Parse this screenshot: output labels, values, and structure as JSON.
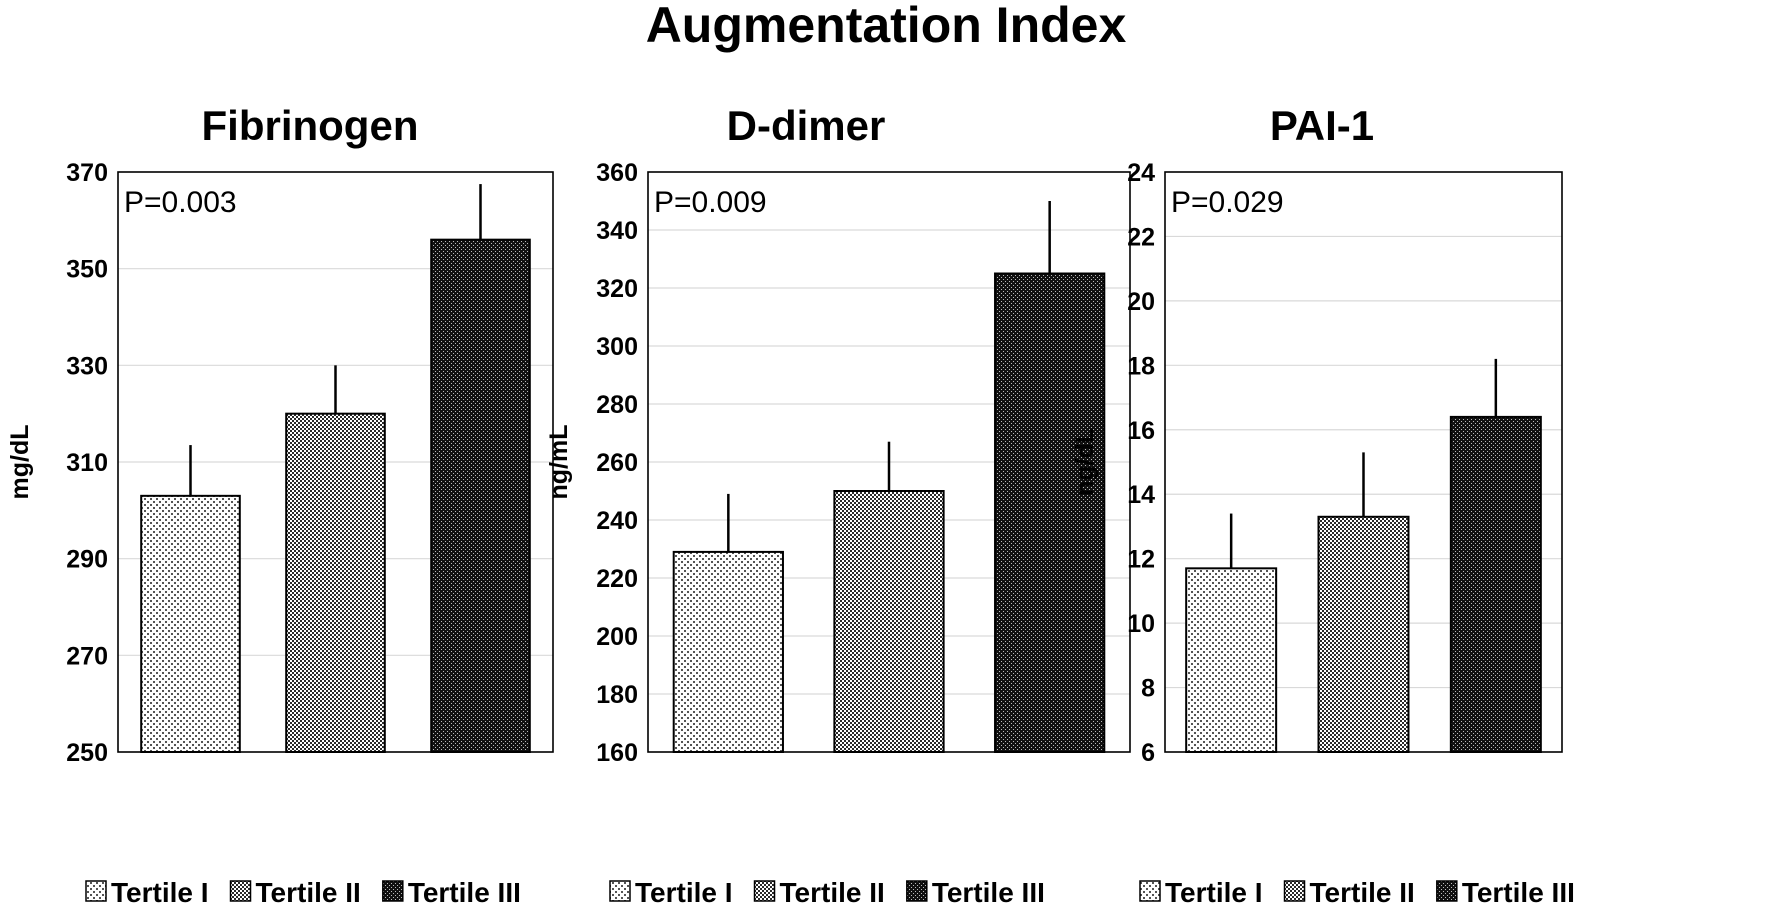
{
  "title": "Augmentation Index",
  "legend": [
    "Tertile I",
    "Tertile II",
    "Tertile III"
  ],
  "chart_data": [
    {
      "type": "bar",
      "title": "Fibrinogen",
      "ylabel": "mg/dL",
      "annotation": "P=0.003",
      "ylim": [
        250,
        370
      ],
      "yticks": [
        250,
        270,
        290,
        310,
        330,
        350,
        370
      ],
      "categories": [
        "Tertile I",
        "Tertile II",
        "Tertile III"
      ],
      "values": [
        303,
        320,
        356
      ],
      "error_upper": [
        313.5,
        330,
        367.5
      ],
      "grid": true
    },
    {
      "type": "bar",
      "title": "D-dimer",
      "ylabel": "ng/mL",
      "annotation": "P=0.009",
      "ylim": [
        160,
        360
      ],
      "yticks": [
        160,
        180,
        200,
        220,
        240,
        260,
        280,
        300,
        320,
        340,
        360
      ],
      "categories": [
        "Tertile I",
        "Tertile II",
        "Tertile III"
      ],
      "values": [
        229,
        250,
        325
      ],
      "error_upper": [
        249,
        267,
        350
      ],
      "grid": true
    },
    {
      "type": "bar",
      "title": "PAI-1",
      "ylabel": "ng/dL",
      "annotation": "P=0.029",
      "ylim": [
        6,
        24
      ],
      "yticks": [
        6,
        8,
        10,
        12,
        14,
        16,
        18,
        20,
        22,
        24
      ],
      "categories": [
        "Tertile I",
        "Tertile II",
        "Tertile III"
      ],
      "values": [
        11.7,
        13.3,
        16.4
      ],
      "error_upper": [
        13.4,
        15.3,
        18.2
      ],
      "grid": true
    }
  ]
}
